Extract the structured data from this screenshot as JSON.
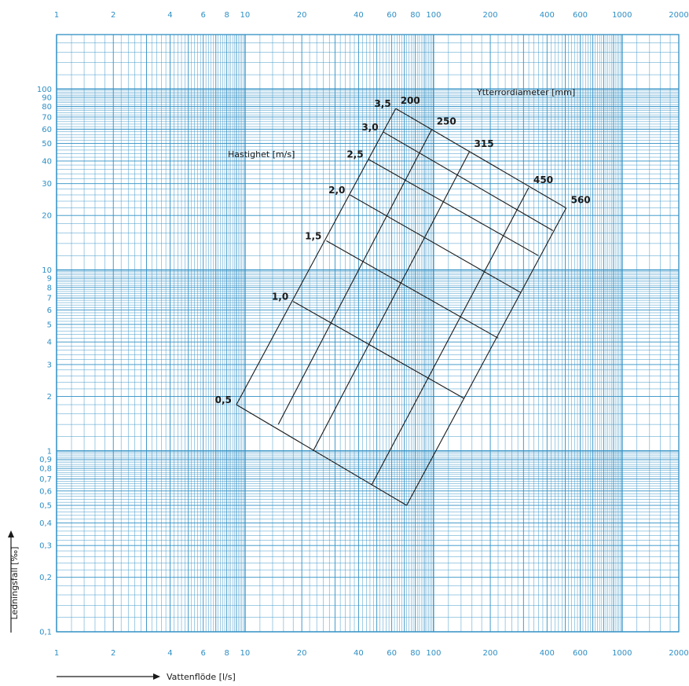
{
  "chart_data": {
    "type": "line",
    "title": "",
    "xlabel": "Vattenflöde [l/s]",
    "ylabel": "Ledningsfall [‰]",
    "xscale": "log",
    "yscale": "log",
    "xlim": [
      1,
      2000
    ],
    "ylim": [
      0.1,
      200
    ],
    "grid": true,
    "colors": {
      "grid": "#2f8fc4",
      "lines": "#1a1a1a",
      "ticks": "#2f8fc4"
    },
    "x_ticks": [
      {
        "v": 1,
        "t": "1"
      },
      {
        "v": 2,
        "t": "2"
      },
      {
        "v": 4,
        "t": "4"
      },
      {
        "v": 6,
        "t": "6"
      },
      {
        "v": 8,
        "t": "8"
      },
      {
        "v": 10,
        "t": "10"
      },
      {
        "v": 20,
        "t": "20"
      },
      {
        "v": 40,
        "t": "40"
      },
      {
        "v": 60,
        "t": "60"
      },
      {
        "v": 80,
        "t": "80"
      },
      {
        "v": 100,
        "t": "100"
      },
      {
        "v": 200,
        "t": "200"
      },
      {
        "v": 400,
        "t": "400"
      },
      {
        "v": 600,
        "t": "600"
      },
      {
        "v": 1000,
        "t": "1000"
      },
      {
        "v": 2000,
        "t": "2000"
      }
    ],
    "y_ticks": [
      {
        "v": 100,
        "t": "100"
      },
      {
        "v": 90,
        "t": "90"
      },
      {
        "v": 80,
        "t": "80"
      },
      {
        "v": 70,
        "t": "70"
      },
      {
        "v": 60,
        "t": "60"
      },
      {
        "v": 50,
        "t": "50"
      },
      {
        "v": 40,
        "t": "40"
      },
      {
        "v": 30,
        "t": "30"
      },
      {
        "v": 20,
        "t": "20"
      },
      {
        "v": 10,
        "t": "10"
      },
      {
        "v": 9,
        "t": "9"
      },
      {
        "v": 8,
        "t": "8"
      },
      {
        "v": 7,
        "t": "7"
      },
      {
        "v": 6,
        "t": "6"
      },
      {
        "v": 5,
        "t": "5"
      },
      {
        "v": 4,
        "t": "4"
      },
      {
        "v": 3,
        "t": "3"
      },
      {
        "v": 2,
        "t": "2"
      },
      {
        "v": 1,
        "t": "1"
      },
      {
        "v": 0.9,
        "t": "0,9"
      },
      {
        "v": 0.8,
        "t": "0,8"
      },
      {
        "v": 0.7,
        "t": "0,7"
      },
      {
        "v": 0.6,
        "t": "0,6"
      },
      {
        "v": 0.5,
        "t": "0,5"
      },
      {
        "v": 0.4,
        "t": "0,4"
      },
      {
        "v": 0.3,
        "t": "0,3"
      },
      {
        "v": 0.2,
        "t": "0,2"
      },
      {
        "v": 0.1,
        "t": "0,1"
      }
    ],
    "diameter_label": "Ytterrordiameter [mm]",
    "velocity_label": "Hastighet [m/s]",
    "diameters": [
      {
        "label": "200",
        "start": [
          63,
          78
        ],
        "end": [
          9,
          1.8
        ]
      },
      {
        "label": "250",
        "start": [
          98,
          60
        ],
        "end": [
          15,
          1.4
        ]
      },
      {
        "label": "315",
        "start": [
          155,
          45
        ],
        "end": [
          23,
          1.0
        ]
      },
      {
        "label": "450",
        "start": [
          320,
          28.5
        ],
        "end": [
          47,
          0.65
        ]
      },
      {
        "label": "560",
        "start": [
          505,
          22
        ],
        "end": [
          72,
          0.5
        ]
      }
    ],
    "velocities": [
      {
        "label": "0,5",
        "start": [
          9,
          1.8
        ],
        "end": [
          72,
          0.5
        ]
      },
      {
        "label": "1,0",
        "start": [
          18,
          6.7
        ],
        "end": [
          145,
          1.95
        ]
      },
      {
        "label": "1,5",
        "start": [
          27,
          14.5
        ],
        "end": [
          220,
          4.2
        ]
      },
      {
        "label": "2,0",
        "start": [
          36,
          26
        ],
        "end": [
          290,
          7.5
        ]
      },
      {
        "label": "2,5",
        "start": [
          45,
          41
        ],
        "end": [
          360,
          12
        ]
      },
      {
        "label": "3,0",
        "start": [
          54,
          58
        ],
        "end": [
          430,
          16.5
        ]
      },
      {
        "label": "3,5",
        "start": [
          63,
          78
        ],
        "end": [
          505,
          22
        ]
      }
    ]
  }
}
